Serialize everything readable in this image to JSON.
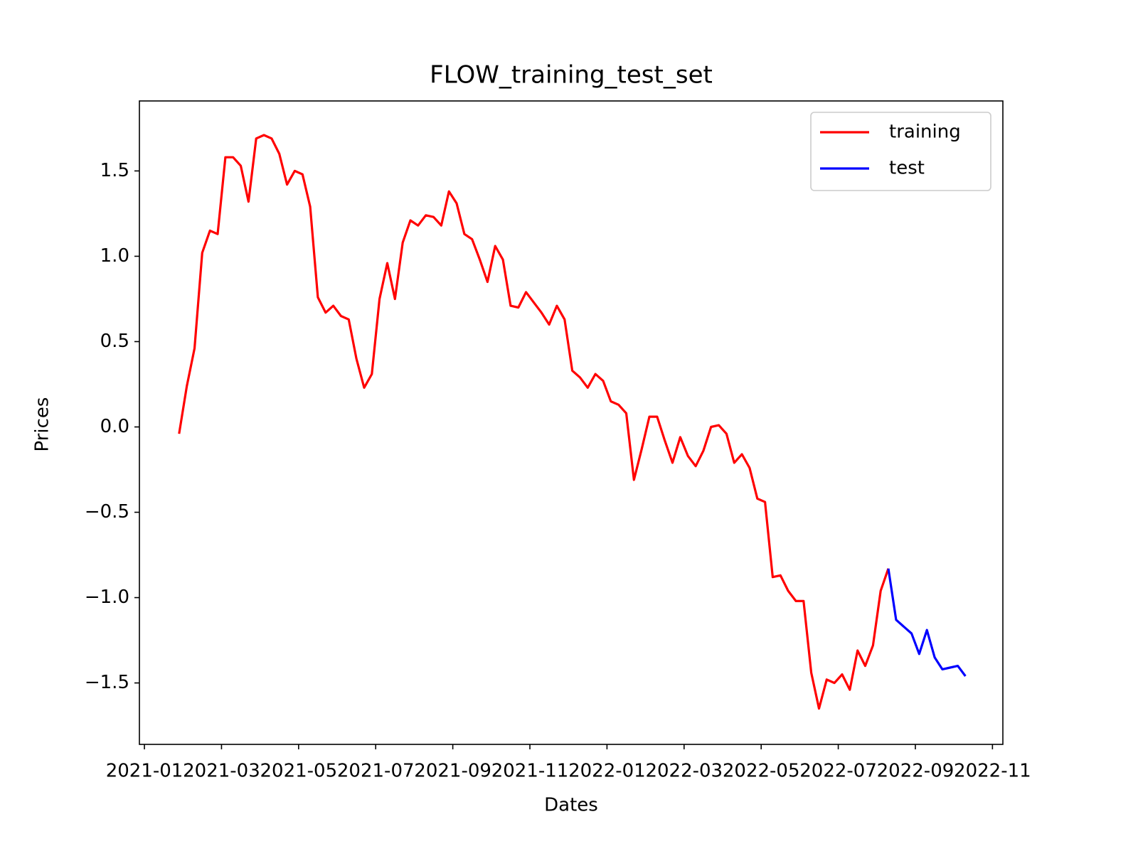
{
  "chart_data": {
    "type": "line",
    "title": "FLOW_training_test_set",
    "xlabel": "Dates",
    "ylabel": "Prices",
    "xlim": [
      -0.13,
      22.27
    ],
    "ylim": [
      -1.86,
      1.91
    ],
    "xticks": [
      {
        "value": 0,
        "label": "2021-01"
      },
      {
        "value": 2,
        "label": "2021-03"
      },
      {
        "value": 4,
        "label": "2021-05"
      },
      {
        "value": 6,
        "label": "2021-07"
      },
      {
        "value": 8,
        "label": "2021-09"
      },
      {
        "value": 10,
        "label": "2021-11"
      },
      {
        "value": 12,
        "label": "2022-01"
      },
      {
        "value": 14,
        "label": "2022-03"
      },
      {
        "value": 16,
        "label": "2022-05"
      },
      {
        "value": 18,
        "label": "2022-07"
      },
      {
        "value": 20,
        "label": "2022-09"
      },
      {
        "value": 22,
        "label": "2022-11"
      }
    ],
    "yticks": [
      {
        "value": -1.5,
        "label": "−1.5"
      },
      {
        "value": -1,
        "label": "−1.0"
      },
      {
        "value": -0.5,
        "label": "−0.5"
      },
      {
        "value": 0,
        "label": "0.0"
      },
      0.5,
      {
        "value": 1,
        "label": "1.0"
      },
      1.5
    ],
    "legend": "upper right",
    "series": [
      {
        "name": "training",
        "color": "#ff0000",
        "x": [
          0.9,
          1.1,
          1.3,
          1.5,
          1.7,
          1.9,
          2.1,
          2.3,
          2.5,
          2.7,
          2.9,
          3.1,
          3.3,
          3.5,
          3.7,
          3.9,
          4.1,
          4.3,
          4.5,
          4.7,
          4.9,
          5.1,
          5.3,
          5.5,
          5.7,
          5.9,
          6.1,
          6.3,
          6.5,
          6.7,
          6.9,
          7.1,
          7.3,
          7.5,
          7.7,
          7.9,
          8.1,
          8.3,
          8.5,
          8.7,
          8.9,
          9.1,
          9.3,
          9.5,
          9.7,
          9.9,
          10.1,
          10.3,
          10.5,
          10.7,
          10.9,
          11.1,
          11.3,
          11.5,
          11.7,
          11.9,
          12.1,
          12.3,
          12.5,
          12.7,
          12.9,
          13.1,
          13.3,
          13.5,
          13.7,
          13.9,
          14.1,
          14.3,
          14.5,
          14.7,
          14.9,
          15.1,
          15.3,
          15.5,
          15.7,
          15.9,
          16.1,
          16.3,
          16.5,
          16.7,
          16.9,
          17.1,
          17.3,
          17.5,
          17.7,
          17.9,
          18.1,
          18.3,
          18.5,
          18.7,
          18.9,
          19.1,
          19.3
        ],
        "values": [
          -0.04,
          0.24,
          0.46,
          1.02,
          1.15,
          1.13,
          1.58,
          1.58,
          1.53,
          1.32,
          1.69,
          1.71,
          1.69,
          1.6,
          1.42,
          1.5,
          1.48,
          1.29,
          0.76,
          0.67,
          0.71,
          0.65,
          0.63,
          0.4,
          0.23,
          0.31,
          0.75,
          0.96,
          0.75,
          1.08,
          1.21,
          1.18,
          1.24,
          1.23,
          1.18,
          1.38,
          1.31,
          1.13,
          1.1,
          0.98,
          0.85,
          1.06,
          0.98,
          0.71,
          0.7,
          0.79,
          0.73,
          0.67,
          0.6,
          0.71,
          0.63,
          0.33,
          0.29,
          0.23,
          0.31,
          0.27,
          0.15,
          0.13,
          0.08,
          -0.31,
          -0.13,
          0.06,
          0.06,
          -0.08,
          -0.21,
          -0.06,
          -0.17,
          -0.23,
          -0.14,
          0,
          0.01,
          -0.04,
          -0.21,
          -0.16,
          -0.24,
          -0.42,
          -0.44,
          -0.88,
          -0.87,
          -0.96,
          -1.02,
          -1.02,
          -1.44,
          -1.65,
          -1.48,
          -1.5,
          -1.45,
          -1.54,
          -1.31,
          -1.4,
          -1.28,
          -0.96,
          -0.83
        ]
      },
      {
        "name": "test",
        "color": "#0000ff",
        "x": [
          19.3,
          19.5,
          19.7,
          19.9,
          20.1,
          20.3,
          20.5,
          20.7,
          20.9,
          21.1,
          21.3
        ],
        "values": [
          -0.83,
          -1.13,
          -1.17,
          -1.21,
          -1.33,
          -1.19,
          -1.35,
          -1.42,
          -1.41,
          -1.4,
          -1.46
        ]
      }
    ]
  }
}
